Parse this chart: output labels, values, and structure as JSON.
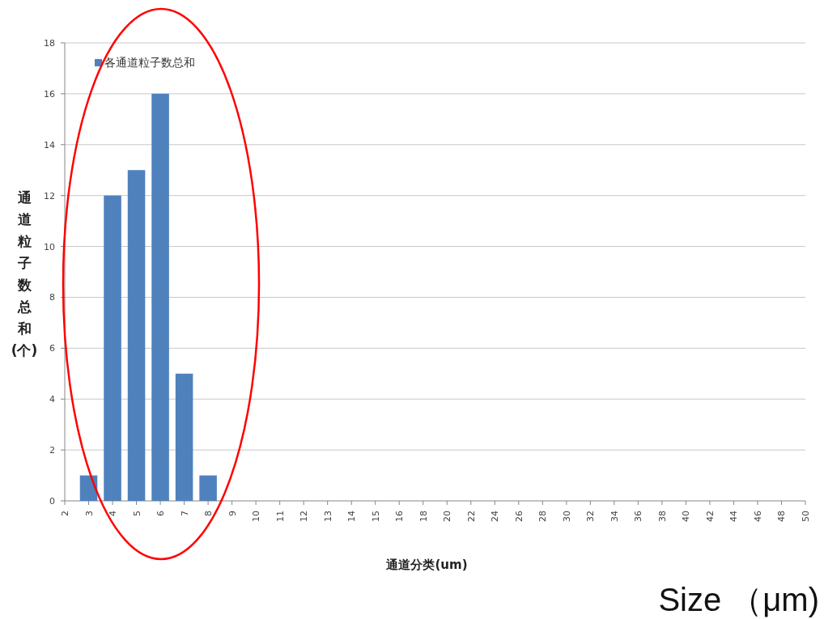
{
  "chart_data": {
    "type": "bar",
    "xlabel": "通道分类(um)",
    "ylabel": "通道粒子数总和(个)",
    "categories": [
      "2",
      "3",
      "4",
      "5",
      "6",
      "7",
      "8",
      "9",
      "10",
      "11",
      "12",
      "13",
      "14",
      "15",
      "16",
      "18",
      "20",
      "22",
      "24",
      "26",
      "28",
      "30",
      "32",
      "34",
      "36",
      "38",
      "40",
      "42",
      "44",
      "46",
      "48",
      "50"
    ],
    "series": [
      {
        "name": "各通道粒子数总和",
        "color": "#4f81bd",
        "values": [
          0,
          1,
          12,
          13,
          16,
          5,
          1,
          0,
          0,
          0,
          0,
          0,
          0,
          0,
          0,
          0,
          0,
          0,
          0,
          0,
          0,
          0,
          0,
          0,
          0,
          0,
          0,
          0,
          0,
          0,
          0,
          0
        ]
      }
    ],
    "ylim": [
      0,
      18
    ],
    "yticks": [
      0,
      2,
      4,
      6,
      8,
      10,
      12,
      14,
      16,
      18
    ],
    "grid": "y",
    "legend": "top left",
    "annotations": [
      "Size （μm)"
    ]
  }
}
